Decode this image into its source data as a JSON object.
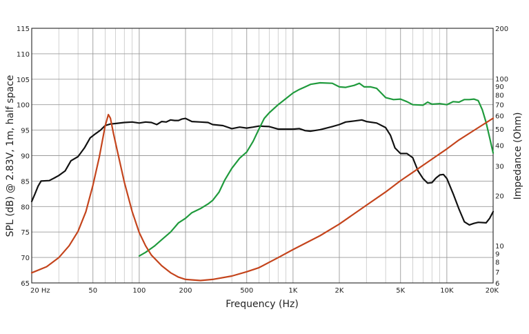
{
  "chart_data": {
    "type": "line",
    "title": "",
    "xlabel": "Frequency (Hz)",
    "ylabel": "SPL (dB) @ 2.83V, 1m, half space",
    "y2label": "Impedance (Ohm)",
    "x_scale": "log",
    "xlim": [
      20,
      20000
    ],
    "ylim": [
      65,
      115
    ],
    "y2_scale": "log",
    "y2lim": [
      6,
      200
    ],
    "grid": true,
    "x_ticks": [
      {
        "value": 20,
        "label": "20  Hz"
      },
      {
        "value": 50,
        "label": "50"
      },
      {
        "value": 100,
        "label": "100"
      },
      {
        "value": 200,
        "label": "200"
      },
      {
        "value": 500,
        "label": "500"
      },
      {
        "value": 1000,
        "label": "1K"
      },
      {
        "value": 2000,
        "label": "2K"
      },
      {
        "value": 5000,
        "label": "5K"
      },
      {
        "value": 10000,
        "label": "10K"
      },
      {
        "value": 20000,
        "label": "20K"
      }
    ],
    "y_ticks": [
      "65",
      "70",
      "75",
      "80",
      "85",
      "90",
      "95",
      "100",
      "105",
      "110",
      "115"
    ],
    "y2_ticks": [
      {
        "value": 6,
        "label": "6"
      },
      {
        "value": 7,
        "label": "7"
      },
      {
        "value": 8,
        "label": "8"
      },
      {
        "value": 9,
        "label": "9"
      },
      {
        "value": 10,
        "label": "10"
      },
      {
        "value": 20,
        "label": "20"
      },
      {
        "value": 30,
        "label": "30"
      },
      {
        "value": 40,
        "label": "40"
      },
      {
        "value": 50,
        "label": "50"
      },
      {
        "value": 60,
        "label": "60"
      },
      {
        "value": 70,
        "label": "70"
      },
      {
        "value": 80,
        "label": "80"
      },
      {
        "value": 90,
        "label": "90"
      },
      {
        "value": 100,
        "label": "100"
      },
      {
        "value": 200,
        "label": "200"
      }
    ],
    "series": [
      {
        "axis": "left",
        "color": "#111111",
        "points": [
          [
            20,
            81
          ],
          [
            21,
            82.5
          ],
          [
            22,
            84
          ],
          [
            23,
            85
          ],
          [
            26,
            85.1
          ],
          [
            28,
            85.6
          ],
          [
            30,
            86.1
          ],
          [
            33,
            87
          ],
          [
            36,
            89
          ],
          [
            40,
            89.8
          ],
          [
            44,
            91.5
          ],
          [
            48,
            93.5
          ],
          [
            52,
            94.3
          ],
          [
            56,
            95
          ],
          [
            60,
            95.9
          ],
          [
            65,
            96.2
          ],
          [
            70,
            96.3
          ],
          [
            80,
            96.5
          ],
          [
            90,
            96.6
          ],
          [
            100,
            96.4
          ],
          [
            110,
            96.6
          ],
          [
            120,
            96.5
          ],
          [
            130,
            96.1
          ],
          [
            140,
            96.7
          ],
          [
            150,
            96.6
          ],
          [
            160,
            97.0
          ],
          [
            170,
            96.9
          ],
          [
            180,
            96.9
          ],
          [
            190,
            97.2
          ],
          [
            200,
            97.3
          ],
          [
            220,
            96.7
          ],
          [
            250,
            96.6
          ],
          [
            280,
            96.5
          ],
          [
            300,
            96.1
          ],
          [
            350,
            95.9
          ],
          [
            400,
            95.3
          ],
          [
            450,
            95.6
          ],
          [
            500,
            95.4
          ],
          [
            550,
            95.6
          ],
          [
            600,
            95.8
          ],
          [
            700,
            95.7
          ],
          [
            800,
            95.2
          ],
          [
            900,
            95.2
          ],
          [
            1000,
            95.2
          ],
          [
            1100,
            95.3
          ],
          [
            1200,
            94.9
          ],
          [
            1300,
            94.8
          ],
          [
            1500,
            95.1
          ],
          [
            1800,
            95.7
          ],
          [
            2000,
            96.1
          ],
          [
            2200,
            96.6
          ],
          [
            2500,
            96.8
          ],
          [
            2800,
            97.0
          ],
          [
            3000,
            96.7
          ],
          [
            3500,
            96.4
          ],
          [
            4000,
            95.5
          ],
          [
            4300,
            94.0
          ],
          [
            4600,
            91.5
          ],
          [
            5000,
            90.4
          ],
          [
            5500,
            90.4
          ],
          [
            6000,
            89.6
          ],
          [
            6500,
            87.0
          ],
          [
            7000,
            85.5
          ],
          [
            7500,
            84.6
          ],
          [
            8000,
            84.7
          ],
          [
            8500,
            85.6
          ],
          [
            9000,
            86.2
          ],
          [
            9500,
            86.3
          ],
          [
            10000,
            85.5
          ],
          [
            11000,
            82.5
          ],
          [
            12000,
            79.5
          ],
          [
            13000,
            77.0
          ],
          [
            14000,
            76.4
          ],
          [
            15000,
            76.7
          ],
          [
            16000,
            76.9
          ],
          [
            18000,
            76.8
          ],
          [
            19000,
            77.7
          ],
          [
            20000,
            79.0
          ]
        ]
      },
      {
        "axis": "left",
        "color": "#1f9a3c",
        "points": [
          [
            100,
            70.3
          ],
          [
            110,
            71.0
          ],
          [
            125,
            72.2
          ],
          [
            140,
            73.5
          ],
          [
            160,
            75.0
          ],
          [
            180,
            76.8
          ],
          [
            200,
            77.7
          ],
          [
            220,
            78.8
          ],
          [
            250,
            79.6
          ],
          [
            280,
            80.5
          ],
          [
            300,
            81.2
          ],
          [
            330,
            82.8
          ],
          [
            360,
            85.2
          ],
          [
            400,
            87.5
          ],
          [
            450,
            89.5
          ],
          [
            500,
            90.7
          ],
          [
            550,
            92.8
          ],
          [
            600,
            95.2
          ],
          [
            650,
            97.3
          ],
          [
            700,
            98.4
          ],
          [
            800,
            100.0
          ],
          [
            900,
            101.2
          ],
          [
            1000,
            102.3
          ],
          [
            1100,
            103.0
          ],
          [
            1200,
            103.5
          ],
          [
            1300,
            104.0
          ],
          [
            1500,
            104.3
          ],
          [
            1800,
            104.2
          ],
          [
            2000,
            103.5
          ],
          [
            2200,
            103.4
          ],
          [
            2500,
            103.8
          ],
          [
            2700,
            104.2
          ],
          [
            2900,
            103.5
          ],
          [
            3200,
            103.5
          ],
          [
            3500,
            103.2
          ],
          [
            4000,
            101.4
          ],
          [
            4500,
            101.0
          ],
          [
            5000,
            101.1
          ],
          [
            5500,
            100.6
          ],
          [
            6000,
            100.0
          ],
          [
            7000,
            99.9
          ],
          [
            7500,
            100.5
          ],
          [
            8000,
            100.1
          ],
          [
            9000,
            100.2
          ],
          [
            10000,
            100.0
          ],
          [
            11000,
            100.6
          ],
          [
            12000,
            100.5
          ],
          [
            13000,
            101.0
          ],
          [
            14000,
            101.0
          ],
          [
            15000,
            101.1
          ],
          [
            16000,
            100.8
          ],
          [
            17000,
            99.0
          ],
          [
            18000,
            96.5
          ],
          [
            19000,
            93.5
          ],
          [
            20000,
            90.5
          ]
        ]
      },
      {
        "axis": "right",
        "color": "#c4441c",
        "points": [
          [
            20,
            6.9
          ],
          [
            25,
            7.5
          ],
          [
            30,
            8.5
          ],
          [
            35,
            10.0
          ],
          [
            40,
            12.2
          ],
          [
            45,
            16.0
          ],
          [
            50,
            23.0
          ],
          [
            55,
            34.0
          ],
          [
            60,
            52.0
          ],
          [
            63,
            61.0
          ],
          [
            65,
            58.0
          ],
          [
            68,
            47.0
          ],
          [
            72,
            37.0
          ],
          [
            80,
            24.0
          ],
          [
            90,
            16.0
          ],
          [
            100,
            12.0
          ],
          [
            110,
            10.0
          ],
          [
            120,
            8.8
          ],
          [
            140,
            7.6
          ],
          [
            160,
            6.9
          ],
          [
            180,
            6.5
          ],
          [
            200,
            6.3
          ],
          [
            250,
            6.2
          ],
          [
            300,
            6.3
          ],
          [
            400,
            6.6
          ],
          [
            500,
            7.0
          ],
          [
            600,
            7.4
          ],
          [
            800,
            8.5
          ],
          [
            1000,
            9.5
          ],
          [
            1500,
            11.5
          ],
          [
            2000,
            13.5
          ],
          [
            3000,
            17.5
          ],
          [
            4000,
            21.0
          ],
          [
            5000,
            24.5
          ],
          [
            6000,
            27.5
          ],
          [
            8000,
            33.0
          ],
          [
            10000,
            38.0
          ],
          [
            12000,
            43.0
          ],
          [
            15000,
            49.0
          ],
          [
            20000,
            58.0
          ]
        ]
      }
    ]
  }
}
